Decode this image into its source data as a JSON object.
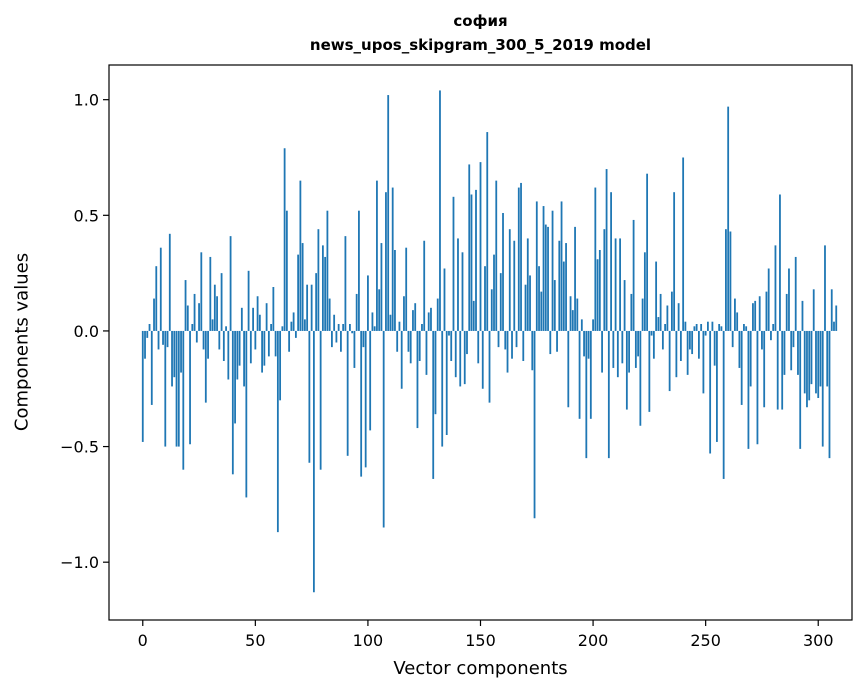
{
  "title_line1": "софия",
  "title_line2": "news_upos_skipgram_300_5_2019 model",
  "xlabel": "Vector components",
  "ylabel": "Components values",
  "chart_data": {
    "type": "bar",
    "title": "софия news_upos_skipgram_300_5_2019 model",
    "xlabel": "Vector components",
    "ylabel": "Components values",
    "xlim": [
      -15,
      315
    ],
    "ylim": [
      -1.25,
      1.15
    ],
    "xticks": [
      0,
      50,
      100,
      150,
      200,
      250,
      300
    ],
    "xtick_labels": [
      "0",
      "50",
      "100",
      "150",
      "200",
      "250",
      "300"
    ],
    "yticks": [
      -1.0,
      -0.5,
      0.0,
      0.5,
      1.0
    ],
    "ytick_labels": [
      "−1.0",
      "−0.5",
      "0.0",
      "0.5",
      "1.0"
    ],
    "bar_color": "#1f77b4",
    "values": [
      -0.48,
      -0.12,
      -0.03,
      0.03,
      -0.32,
      0.14,
      0.28,
      -0.08,
      0.36,
      -0.06,
      -0.5,
      -0.07,
      0.42,
      -0.24,
      -0.2,
      -0.5,
      -0.5,
      -0.18,
      -0.6,
      0.22,
      0.11,
      -0.49,
      0.03,
      0.16,
      -0.05,
      0.12,
      0.34,
      -0.08,
      -0.31,
      -0.12,
      0.32,
      0.05,
      0.2,
      0.15,
      -0.08,
      0.25,
      -0.13,
      0.02,
      -0.21,
      0.41,
      -0.62,
      -0.4,
      -0.21,
      -0.15,
      0.1,
      -0.24,
      -0.72,
      0.26,
      -0.14,
      0.1,
      -0.08,
      0.15,
      0.07,
      -0.18,
      -0.15,
      0.12,
      -0.11,
      0.03,
      0.19,
      -0.11,
      -0.87,
      -0.3,
      0.02,
      0.79,
      0.52,
      -0.09,
      0.04,
      0.08,
      -0.03,
      0.33,
      0.65,
      0.38,
      0.05,
      0.2,
      -0.57,
      0.2,
      -1.13,
      0.25,
      0.44,
      -0.6,
      0.37,
      0.32,
      0.52,
      0.14,
      -0.07,
      0.07,
      -0.05,
      0.03,
      -0.09,
      0.03,
      0.41,
      -0.54,
      0.03,
      -0.01,
      -0.16,
      0.16,
      0.52,
      -0.63,
      -0.07,
      -0.59,
      0.24,
      -0.43,
      0.08,
      0.02,
      0.65,
      0.18,
      0.38,
      -0.85,
      0.6,
      1.02,
      0.07,
      0.62,
      0.35,
      -0.09,
      0.04,
      -0.25,
      0.15,
      0.36,
      -0.09,
      -0.14,
      0.09,
      0.12,
      -0.42,
      -0.13,
      0.03,
      0.39,
      -0.19,
      0.08,
      0.1,
      -0.64,
      -0.36,
      0.14,
      1.04,
      -0.5,
      0.27,
      -0.45,
      -0.02,
      -0.13,
      0.58,
      -0.2,
      0.4,
      -0.24,
      0.34,
      -0.23,
      -0.1,
      0.72,
      0.59,
      0.13,
      0.61,
      -0.14,
      0.73,
      -0.25,
      0.28,
      0.86,
      -0.31,
      0.18,
      0.33,
      0.65,
      -0.07,
      0.25,
      0.51,
      -0.08,
      -0.18,
      0.44,
      -0.12,
      0.39,
      -0.07,
      0.62,
      0.64,
      -0.13,
      0.2,
      0.4,
      0.24,
      -0.17,
      -0.81,
      0.56,
      0.28,
      0.17,
      0.54,
      0.46,
      0.45,
      -0.1,
      0.52,
      0.22,
      -0.09,
      0.39,
      0.56,
      0.3,
      0.38,
      -0.33,
      0.15,
      0.09,
      0.45,
      0.14,
      -0.38,
      0.05,
      -0.11,
      -0.55,
      -0.12,
      -0.38,
      0.05,
      0.62,
      0.31,
      0.35,
      -0.18,
      0.44,
      0.7,
      -0.55,
      0.6,
      -0.16,
      0.4,
      -0.2,
      0.4,
      -0.14,
      0.22,
      -0.34,
      -0.18,
      0.16,
      0.48,
      -0.16,
      -0.11,
      -0.41,
      0.14,
      0.34,
      0.68,
      -0.35,
      -0.02,
      -0.12,
      0.3,
      0.06,
      0.16,
      -0.08,
      0.03,
      0.11,
      -0.26,
      0.17,
      0.6,
      -0.2,
      0.12,
      -0.13,
      0.75,
      0.04,
      -0.19,
      -0.08,
      -0.1,
      0.02,
      0.03,
      -0.12,
      0.03,
      -0.27,
      -0.02,
      0.04,
      -0.53,
      0.04,
      -0.15,
      -0.48,
      0.03,
      0.02,
      -0.64,
      0.44,
      0.97,
      0.43,
      -0.07,
      0.14,
      0.08,
      -0.16,
      -0.32,
      0.03,
      0.02,
      -0.51,
      -0.24,
      0.12,
      0.13,
      -0.49,
      0.15,
      -0.08,
      -0.33,
      0.17,
      0.27,
      -0.04,
      0.03,
      0.37,
      -0.34,
      0.59,
      -0.34,
      -0.19,
      0.16,
      0.27,
      -0.17,
      -0.07,
      0.32,
      -0.19,
      -0.51,
      0.13,
      -0.27,
      -0.33,
      -0.3,
      -0.23,
      0.18,
      -0.27,
      -0.29,
      -0.24,
      -0.5,
      0.37,
      -0.24,
      -0.55,
      0.18,
      0.04,
      0.11
    ]
  }
}
